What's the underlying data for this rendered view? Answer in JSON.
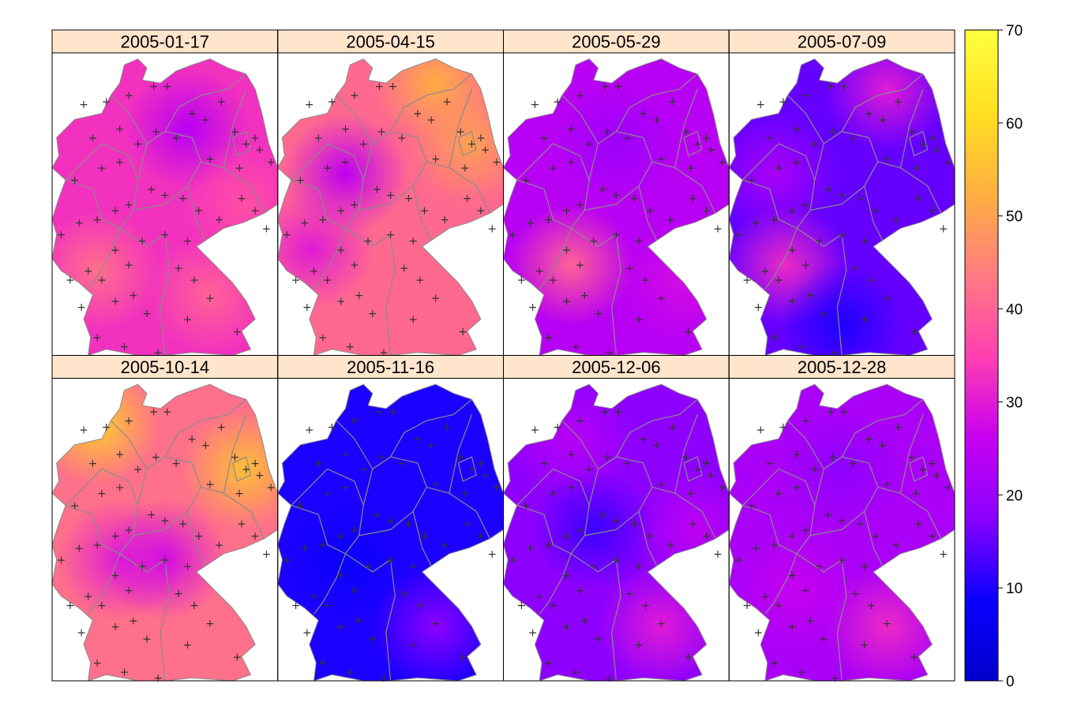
{
  "chart_data": {
    "type": "heatmap",
    "layout": {
      "rows": 2,
      "cols": 4
    },
    "panels": [
      {
        "title": "2005-01-17",
        "mean_value": 33,
        "hotspots": [
          [
            0.2,
            0.72,
            42
          ],
          [
            0.7,
            0.8,
            40
          ],
          [
            0.6,
            0.25,
            24
          ],
          [
            0.85,
            0.5,
            37
          ]
        ]
      },
      {
        "title": "2005-04-15",
        "mean_value": 41,
        "hotspots": [
          [
            0.7,
            0.1,
            52
          ],
          [
            0.85,
            0.3,
            50
          ],
          [
            0.3,
            0.4,
            25
          ],
          [
            0.15,
            0.65,
            30
          ]
        ]
      },
      {
        "title": "2005-05-29",
        "mean_value": 24,
        "hotspots": [
          [
            0.3,
            0.7,
            40
          ],
          [
            0.8,
            0.75,
            28
          ],
          [
            0.5,
            0.3,
            20
          ]
        ]
      },
      {
        "title": "2005-07-09",
        "mean_value": 15,
        "hotspots": [
          [
            0.7,
            0.12,
            30
          ],
          [
            0.25,
            0.7,
            32
          ],
          [
            0.2,
            0.4,
            22
          ],
          [
            0.5,
            0.9,
            10
          ]
        ]
      },
      {
        "title": "2005-10-14",
        "mean_value": 42,
        "hotspots": [
          [
            0.2,
            0.15,
            58
          ],
          [
            0.85,
            0.3,
            55
          ],
          [
            0.3,
            0.6,
            30
          ],
          [
            0.5,
            0.6,
            28
          ]
        ]
      },
      {
        "title": "2005-11-16",
        "mean_value": 10,
        "hotspots": [
          [
            0.7,
            0.82,
            18
          ],
          [
            0.3,
            0.6,
            8
          ]
        ]
      },
      {
        "title": "2005-12-06",
        "mean_value": 18,
        "hotspots": [
          [
            0.7,
            0.82,
            30
          ],
          [
            0.85,
            0.5,
            25
          ],
          [
            0.3,
            0.2,
            24
          ],
          [
            0.4,
            0.5,
            12
          ]
        ]
      },
      {
        "title": "2005-12-28",
        "mean_value": 22,
        "hotspots": [
          [
            0.7,
            0.82,
            32
          ],
          [
            0.3,
            0.7,
            26
          ],
          [
            0.5,
            0.3,
            18
          ]
        ]
      }
    ],
    "colorbar": {
      "min": 0,
      "max": 70,
      "ticks": [
        "0",
        "10",
        "20",
        "30",
        "40",
        "50",
        "60",
        "70"
      ],
      "palette": [
        "#0000cc",
        "#0a00ff",
        "#8a00ff",
        "#c800f0",
        "#ff40b0",
        "#ff7c80",
        "#ffb040",
        "#ffe020",
        "#ffff40"
      ]
    },
    "station_marker": "+",
    "station_color": "#333333",
    "border_color": "#8a8a8a",
    "strip_color": "#ffe5cc"
  }
}
